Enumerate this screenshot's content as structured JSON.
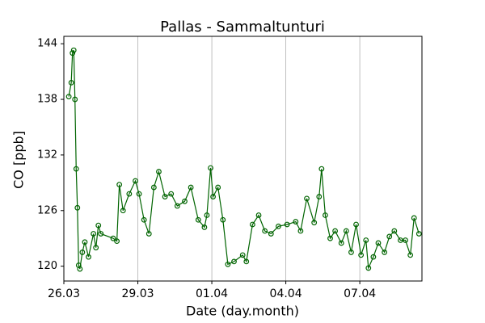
{
  "chart_data": {
    "type": "line",
    "title": "Pallas - Sammaltunturi",
    "xlabel": "Date (day.month)",
    "ylabel": "CO [ppb]",
    "x": [
      0.2,
      0.3,
      0.35,
      0.4,
      0.45,
      0.5,
      0.55,
      0.6,
      0.65,
      0.75,
      0.85,
      1.0,
      1.2,
      1.3,
      1.4,
      1.5,
      2.0,
      2.15,
      2.25,
      2.4,
      2.65,
      2.9,
      3.05,
      3.25,
      3.45,
      3.65,
      3.85,
      4.1,
      4.35,
      4.6,
      4.9,
      5.15,
      5.45,
      5.7,
      5.8,
      5.95,
      6.05,
      6.25,
      6.45,
      6.65,
      6.9,
      7.25,
      7.4,
      7.65,
      7.9,
      8.15,
      8.4,
      8.7,
      9.05,
      9.4,
      9.6,
      9.85,
      10.15,
      10.35,
      10.45,
      10.6,
      10.8,
      11.0,
      11.25,
      11.45,
      11.65,
      11.85,
      12.05,
      12.25,
      12.35,
      12.55,
      12.75,
      13.0,
      13.2,
      13.4,
      13.65,
      13.85,
      14.05,
      14.2,
      14.4
    ],
    "series": [
      {
        "name": "CO",
        "color": "#006400",
        "values": [
          138.3,
          139.8,
          143.0,
          143.3,
          138.0,
          130.5,
          126.3,
          120.1,
          119.7,
          121.5,
          122.6,
          121.0,
          123.5,
          122.0,
          124.4,
          123.5,
          123.0,
          122.7,
          128.8,
          126.0,
          127.8,
          129.2,
          127.8,
          125.0,
          123.5,
          128.5,
          130.2,
          127.5,
          127.8,
          126.5,
          127.0,
          128.5,
          125.0,
          124.2,
          125.5,
          130.6,
          127.5,
          128.5,
          125.0,
          120.2,
          120.5,
          121.2,
          120.5,
          124.5,
          125.5,
          123.8,
          123.5,
          124.3,
          124.5,
          124.8,
          123.8,
          127.3,
          124.7,
          127.5,
          130.5,
          125.5,
          123.0,
          123.8,
          122.5,
          123.8,
          121.5,
          124.5,
          121.2,
          122.8,
          119.8,
          121.0,
          122.5,
          121.5,
          123.2,
          123.8,
          122.8,
          122.8,
          121.2,
          125.2,
          123.5
        ]
      }
    ],
    "xlim": [
      0,
      14.52
    ],
    "xticks": [
      {
        "value": 0,
        "label": "26.03"
      },
      {
        "value": 3,
        "label": "29.03"
      },
      {
        "value": 6,
        "label": "01.04"
      },
      {
        "value": 9,
        "label": "04.04"
      },
      {
        "value": 12,
        "label": "07.04"
      }
    ],
    "ylim": [
      118.4,
      144.8
    ],
    "yticks": [
      120,
      126,
      132,
      138,
      144
    ],
    "grid": "x"
  }
}
